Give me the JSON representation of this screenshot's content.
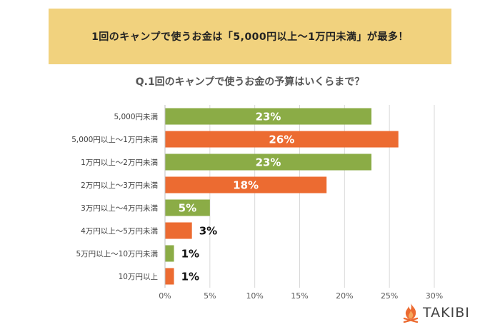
{
  "header": {
    "banner": "1回のキャンプで使うお金は「5,000円以上～1万円未満」が最多！"
  },
  "brand": {
    "name": "TAKIBI",
    "icon": "campfire-icon"
  },
  "colors": {
    "green": "#8bac46",
    "orange": "#ec6b31",
    "banner": "#f1d27e"
  },
  "chart_data": {
    "type": "bar",
    "orientation": "horizontal",
    "title": "Q.1回のキャンプで使うお金の予算はいくらまで？",
    "categories": [
      "5,000円未満",
      "5,000円以上～1万円未満",
      "1万円以上～2万円未満",
      "2万円以上～3万円未満",
      "3万円以上～4万円未満",
      "4万円以上～5万円未満",
      "5万円以上～10万円未満",
      "10万円以上"
    ],
    "values": [
      23,
      26,
      23,
      18,
      5,
      3,
      1,
      1
    ],
    "value_labels": [
      "23%",
      "26%",
      "23%",
      "18%",
      "5%",
      "3%",
      "1%",
      "1%"
    ],
    "bar_colors": [
      "#8bac46",
      "#ec6b31",
      "#8bac46",
      "#ec6b31",
      "#8bac46",
      "#ec6b31",
      "#8bac46",
      "#ec6b31"
    ],
    "xlim": [
      0,
      30
    ],
    "xticks": [
      0,
      5,
      10,
      15,
      20,
      25,
      30
    ],
    "xtick_labels": [
      "0%",
      "5%",
      "10%",
      "15%",
      "20%",
      "25%",
      "30%"
    ],
    "grid": true
  }
}
